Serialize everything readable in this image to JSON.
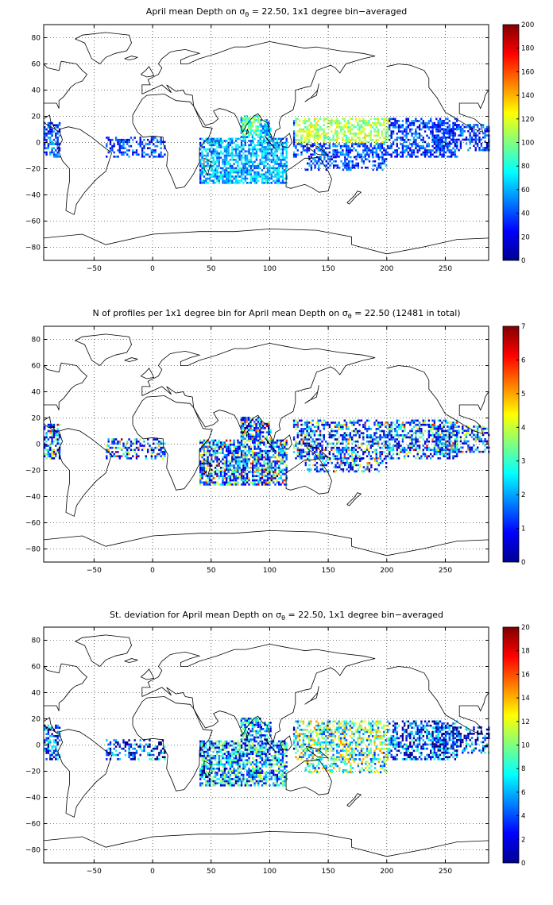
{
  "figure": {
    "panels": [
      {
        "id": "mean-depth",
        "title_prefix": "April mean Depth on ",
        "title_sigma": "σ",
        "title_sub": "θ",
        "title_suffix": " = 22.50, 1x1 degree bin−averaged",
        "xticks": [
          "−50",
          "0",
          "50",
          "100",
          "150",
          "200",
          "250"
        ],
        "yticks": [
          "80",
          "60",
          "40",
          "20",
          "0",
          "−20",
          "−40",
          "−60",
          "−80"
        ],
        "cbar_ticks": [
          "200",
          "180",
          "160",
          "140",
          "120",
          "100",
          "80",
          "60",
          "40",
          "20",
          "0"
        ]
      },
      {
        "id": "profile-count",
        "title_prefix": "N of profiles per 1x1 degree bin for April mean Depth on ",
        "title_sigma": "σ",
        "title_sub": "θ",
        "title_suffix": " = 22.50 (12481 in total)",
        "xticks": [
          "−50",
          "0",
          "50",
          "100",
          "150",
          "200",
          "250"
        ],
        "yticks": [
          "80",
          "60",
          "40",
          "20",
          "0",
          "−20",
          "−40",
          "−60",
          "−80"
        ],
        "cbar_ticks": [
          "7",
          "6",
          "5",
          "4",
          "3",
          "2",
          "1",
          "0"
        ]
      },
      {
        "id": "std-deviation",
        "title_prefix": "St. deviation for April mean Depth on ",
        "title_sigma": "σ",
        "title_sub": "θ",
        "title_suffix": " = 22.50, 1x1 degree bin−averaged",
        "xticks": [
          "−50",
          "0",
          "50",
          "100",
          "150",
          "200",
          "250"
        ],
        "yticks": [
          "80",
          "60",
          "40",
          "20",
          "0",
          "−20",
          "−40",
          "−60",
          "−80"
        ],
        "cbar_ticks": [
          "20",
          "18",
          "16",
          "14",
          "12",
          "10",
          "8",
          "6",
          "4",
          "2",
          "0"
        ]
      }
    ],
    "chart_data": [
      {
        "type": "heatmap",
        "title": "April mean Depth on σθ = 22.50, 1x1 degree bin−averaged",
        "xlim": [
          -93,
          287
        ],
        "ylim": [
          -90,
          90
        ],
        "grid": true,
        "colormap": "jet",
        "clim": [
          0,
          200
        ],
        "regions": [
          {
            "lon": [
              -93,
              -80
            ],
            "lat": [
              -10,
              17
            ],
            "value": 40
          },
          {
            "lon": [
              -40,
              10
            ],
            "lat": [
              -10,
              5
            ],
            "value": 30
          },
          {
            "lon": [
              40,
              115
            ],
            "lat": [
              -30,
              5
            ],
            "value": 60
          },
          {
            "lon": [
              75,
              92
            ],
            "lat": [
              5,
              22
            ],
            "value": 85
          },
          {
            "lon": [
              120,
              260
            ],
            "lat": [
              -10,
              20
            ],
            "value": 95
          },
          {
            "lon": [
              240,
              287
            ],
            "lat": [
              -5,
              15
            ],
            "value": 30
          }
        ]
      },
      {
        "type": "heatmap",
        "title": "N of profiles per 1x1 degree bin for April mean Depth on σθ = 22.50 (12481 in total)",
        "xlim": [
          -93,
          287
        ],
        "ylim": [
          -90,
          90
        ],
        "grid": true,
        "colormap": "jet",
        "clim": [
          0,
          7
        ],
        "total_profiles": 12481
      },
      {
        "type": "heatmap",
        "title": "St. deviation for April mean Depth on σθ = 22.50, 1x1 degree bin−averaged",
        "xlim": [
          -93,
          287
        ],
        "ylim": [
          -90,
          90
        ],
        "grid": true,
        "colormap": "jet",
        "clim": [
          0,
          20
        ]
      }
    ]
  }
}
